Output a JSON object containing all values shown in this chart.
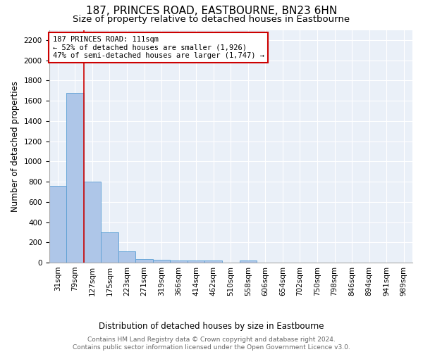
{
  "title": "187, PRINCES ROAD, EASTBOURNE, BN23 6HN",
  "subtitle": "Size of property relative to detached houses in Eastbourne",
  "xlabel": "Distribution of detached houses by size in Eastbourne",
  "ylabel": "Number of detached properties",
  "footer_line1": "Contains HM Land Registry data © Crown copyright and database right 2024.",
  "footer_line2": "Contains public sector information licensed under the Open Government Licence v3.0.",
  "bar_labels": [
    "31sqm",
    "79sqm",
    "127sqm",
    "175sqm",
    "223sqm",
    "271sqm",
    "319sqm",
    "366sqm",
    "414sqm",
    "462sqm",
    "510sqm",
    "558sqm",
    "606sqm",
    "654sqm",
    "702sqm",
    "750sqm",
    "798sqm",
    "846sqm",
    "894sqm",
    "941sqm",
    "989sqm"
  ],
  "bar_values": [
    760,
    1680,
    800,
    300,
    110,
    38,
    28,
    22,
    20,
    18,
    0,
    20,
    0,
    0,
    0,
    0,
    0,
    0,
    0,
    0,
    0
  ],
  "bar_color": "#aec6e8",
  "bar_edge_color": "#5a9fd4",
  "annotation_line1": "187 PRINCES ROAD: 111sqm",
  "annotation_line2": "← 52% of detached houses are smaller (1,926)",
  "annotation_line3": "47% of semi-detached houses are larger (1,747) →",
  "annotation_box_color": "#cc0000",
  "red_line_x": 1.5,
  "ylim": [
    0,
    2300
  ],
  "yticks": [
    0,
    200,
    400,
    600,
    800,
    1000,
    1200,
    1400,
    1600,
    1800,
    2000,
    2200
  ],
  "background_color": "#eaf0f8",
  "grid_color": "#dce6f2",
  "title_fontsize": 11,
  "subtitle_fontsize": 9.5,
  "axis_label_fontsize": 8.5,
  "tick_fontsize": 7.5,
  "annotation_fontsize": 7.5,
  "footer_fontsize": 6.5
}
